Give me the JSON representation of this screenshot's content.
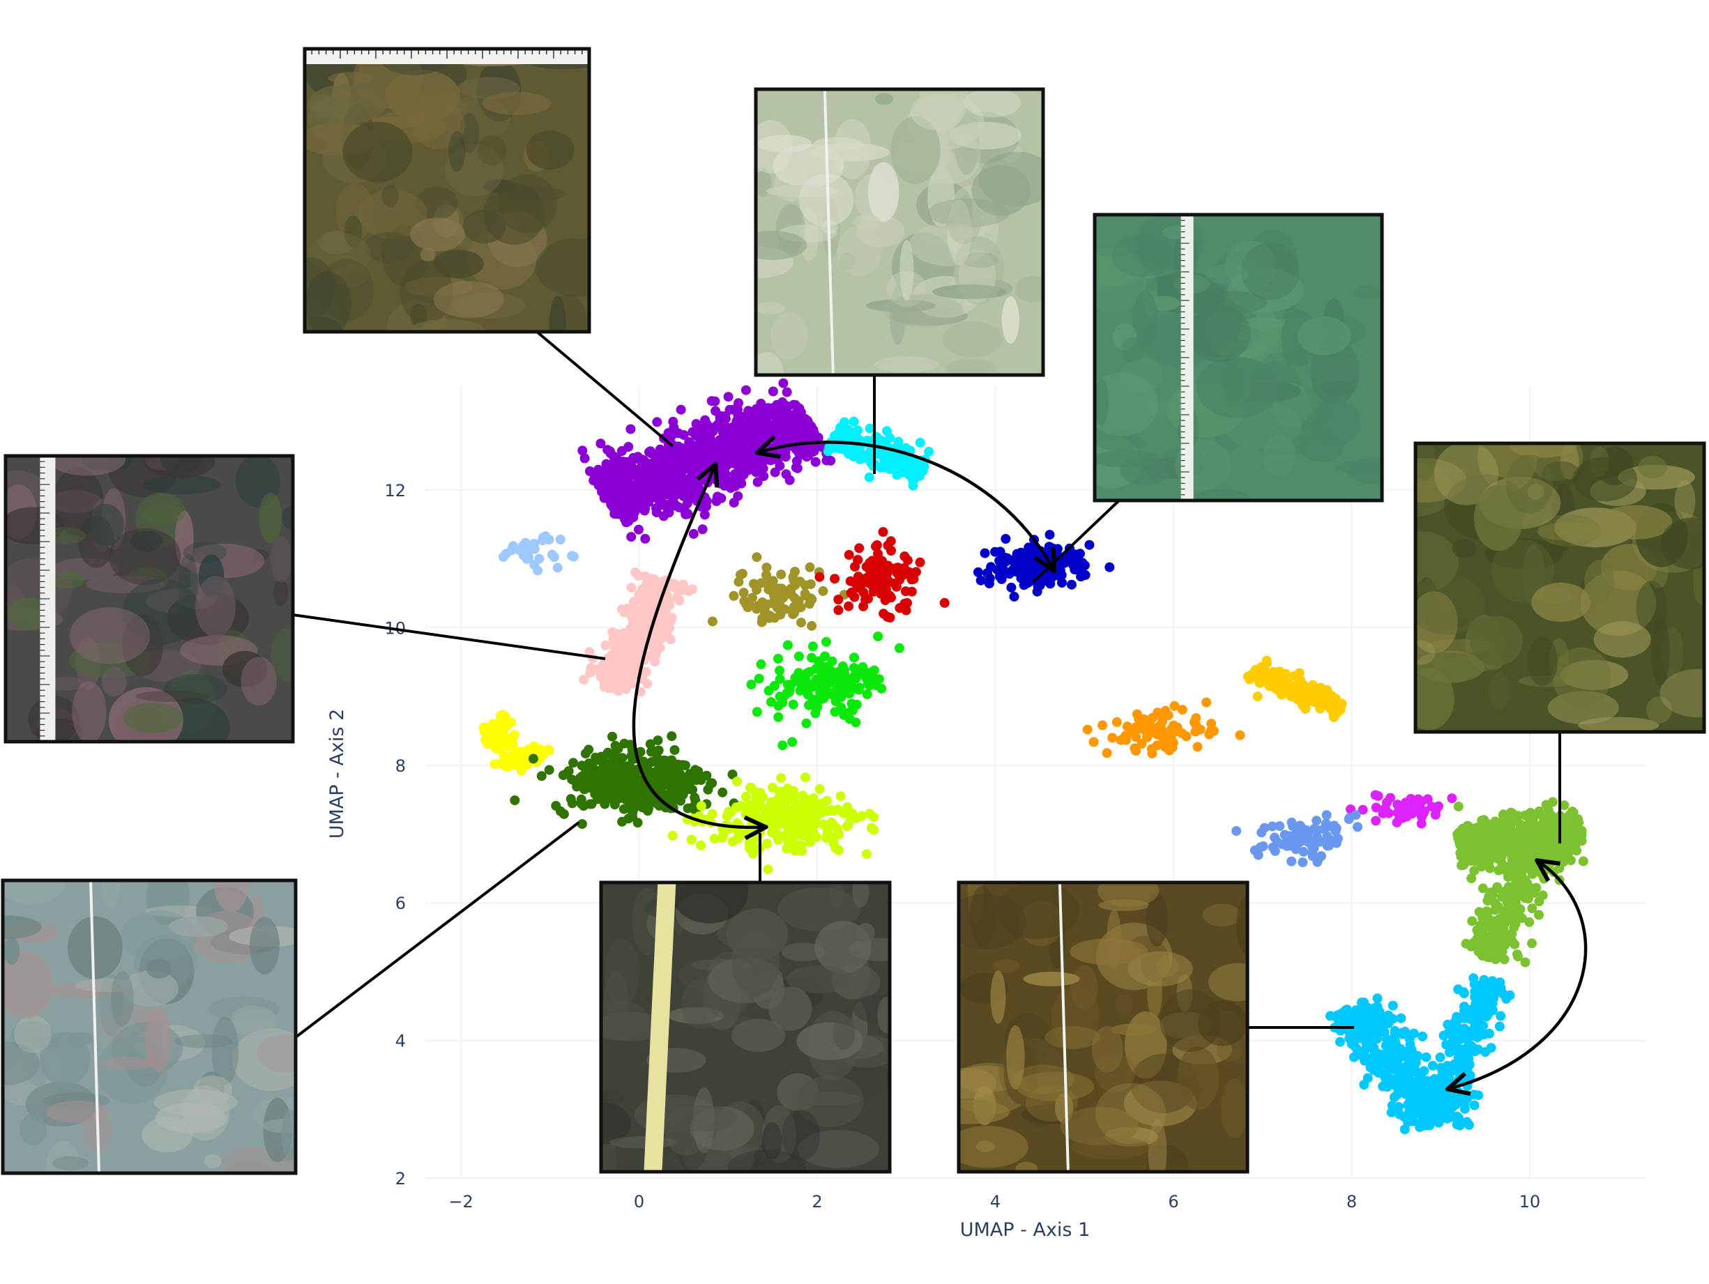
{
  "chart_data": {
    "type": "scatter",
    "xlabel": "UMAP - Axis 1",
    "ylabel": "UMAP - Axis 2",
    "xlim": [
      -2.4,
      11.3
    ],
    "ylim": [
      2,
      13.5
    ],
    "xticks": [
      -2,
      0,
      2,
      4,
      6,
      8,
      10
    ],
    "yticks": [
      2,
      4,
      6,
      8,
      10,
      12
    ],
    "xtick_labels": [
      "−2",
      "0",
      "2",
      "4",
      "6",
      "8",
      "10"
    ],
    "ytick_labels": [
      "2",
      "4",
      "6",
      "8",
      "10",
      "12"
    ],
    "grid": true,
    "legend": "none",
    "clusters": [
      {
        "id": "purple",
        "color": "#8b00d4",
        "shape": "band",
        "from": [
          -0.4,
          11.9
        ],
        "to": [
          1.9,
          13.0
        ],
        "width": 0.85,
        "n": 900
      },
      {
        "id": "cyan",
        "color": "#00f0ff",
        "shape": "band",
        "from": [
          2.2,
          12.8
        ],
        "to": [
          3.2,
          12.3
        ],
        "width": 0.35,
        "n": 180
      },
      {
        "id": "navy",
        "color": "#0000c8",
        "shape": "blob",
        "center": [
          4.5,
          10.9
        ],
        "sx": 0.3,
        "sy": 0.16,
        "n": 160
      },
      {
        "id": "light-blue",
        "color": "#9ec9ff",
        "shape": "blob",
        "center": [
          -1.2,
          11.1
        ],
        "sx": 0.16,
        "sy": 0.1,
        "n": 30
      },
      {
        "id": "pink",
        "color": "#ffc6c6",
        "shape": "band",
        "from": [
          -0.3,
          9.1
        ],
        "to": [
          0.3,
          10.7
        ],
        "width": 0.45,
        "n": 350
      },
      {
        "id": "olive",
        "color": "#a09428",
        "shape": "blob",
        "center": [
          1.55,
          10.45
        ],
        "sx": 0.24,
        "sy": 0.22,
        "n": 90
      },
      {
        "id": "red",
        "color": "#d80000",
        "shape": "blob",
        "center": [
          2.7,
          10.7
        ],
        "sx": 0.22,
        "sy": 0.28,
        "n": 100
      },
      {
        "id": "green",
        "color": "#0ce80c",
        "shape": "blob",
        "center": [
          2.1,
          9.2
        ],
        "sx": 0.3,
        "sy": 0.22,
        "n": 160
      },
      {
        "id": "yellow",
        "color": "#ffff00",
        "shape": "band",
        "from": [
          -1.7,
          8.6
        ],
        "to": [
          -1.2,
          8.0
        ],
        "width": 0.35,
        "n": 90
      },
      {
        "id": "dark-green",
        "color": "#2f7400",
        "shape": "blob",
        "center": [
          -0.05,
          7.75
        ],
        "sx": 0.42,
        "sy": 0.26,
        "n": 380
      },
      {
        "id": "lime",
        "color": "#ccff00",
        "shape": "blob",
        "center": [
          1.65,
          7.2
        ],
        "sx": 0.42,
        "sy": 0.22,
        "n": 260
      },
      {
        "id": "orange",
        "color": "#ff9800",
        "shape": "blob",
        "center": [
          5.8,
          8.5
        ],
        "sx": 0.3,
        "sy": 0.15,
        "n": 80
      },
      {
        "id": "gold",
        "color": "#ffcc00",
        "shape": "band",
        "from": [
          6.9,
          9.4
        ],
        "to": [
          7.9,
          8.8
        ],
        "width": 0.25,
        "n": 140
      },
      {
        "id": "magenta",
        "color": "#dd22ff",
        "shape": "blob",
        "center": [
          8.65,
          7.35
        ],
        "sx": 0.2,
        "sy": 0.11,
        "n": 50
      },
      {
        "id": "cornflower",
        "color": "#6a98f0",
        "shape": "blob",
        "center": [
          7.5,
          6.95
        ],
        "sx": 0.25,
        "sy": 0.16,
        "n": 80
      },
      {
        "id": "yellow-green",
        "color": "#7cc230",
        "shape": "band",
        "from": [
          9.2,
          6.85
        ],
        "to": [
          10.6,
          7.0
        ],
        "width": 0.55,
        "n": 400
      },
      {
        "id": "yellow-green-tail",
        "color": "#7cc230",
        "shape": "band",
        "from": [
          10.0,
          6.7
        ],
        "to": [
          9.5,
          5.2
        ],
        "width": 0.45,
        "n": 200
      },
      {
        "id": "sky-blue",
        "color": "#00c8ff",
        "shape": "band",
        "from": [
          8.0,
          4.5
        ],
        "to": [
          9.0,
          2.8
        ],
        "width": 0.5,
        "n": 350
      },
      {
        "id": "sky-blue-arm",
        "color": "#00c8ff",
        "shape": "band",
        "from": [
          9.0,
          2.8
        ],
        "to": [
          9.5,
          4.9
        ],
        "width": 0.45,
        "n": 220
      }
    ],
    "arrows": [
      {
        "from": [
          3.65,
          11.3
        ],
        "to": [
          1.35,
          12.55
        ]
      },
      {
        "from": [
          3.65,
          11.3
        ],
        "to": [
          4.65,
          10.85
        ]
      },
      {
        "from": [
          -0.3,
          8.9
        ],
        "to": [
          0.85,
          12.35
        ]
      },
      {
        "from": [
          -0.3,
          8.9
        ],
        "to": [
          1.4,
          7.1
        ]
      },
      {
        "from": [
          10.4,
          5.2
        ],
        "to": [
          10.1,
          6.6
        ]
      },
      {
        "from": [
          10.4,
          5.2
        ],
        "to": [
          9.1,
          3.3
        ]
      }
    ]
  },
  "insets": [
    {
      "id": "photo-turf-algae",
      "name": "turf-algae-photo",
      "icon": "seafloor-photo",
      "base": "#5e5a34",
      "tones": [
        "#4a4a2a",
        "#6e6840",
        "#7a6a3c",
        "#3e4430",
        "#8a7a50"
      ],
      "ruler": "top"
    },
    {
      "id": "photo-sandy-rubble",
      "name": "sandy-rubble-photo",
      "icon": "seafloor-photo",
      "base": "#b6c2a6",
      "tones": [
        "#c8d0b8",
        "#a4b496",
        "#d6dcc8",
        "#8fa48a",
        "#e0e2d2"
      ],
      "ruler": "vertical-thin"
    },
    {
      "id": "photo-sand-green",
      "name": "sand-flat-photo",
      "icon": "seafloor-photo",
      "base": "#4e8c6a",
      "tones": [
        "#4a8464",
        "#58956f",
        "#467c5e",
        "#5b9a74"
      ],
      "ruler": "vertical"
    },
    {
      "id": "photo-encrusted-rock",
      "name": "encrusted-rock-photo",
      "icon": "seafloor-photo",
      "base": "#4a4a48",
      "tones": [
        "#2c3e3e",
        "#6a5a60",
        "#8a6a72",
        "#4e6a3a",
        "#3a3434"
      ],
      "ruler": "vertical-left"
    },
    {
      "id": "photo-pale-crust",
      "name": "coralline-crust-photo",
      "icon": "seafloor-photo",
      "base": "#8aa0a0",
      "tones": [
        "#9aa8a8",
        "#b0b8b0",
        "#7c9494",
        "#a89090",
        "#6e8282"
      ],
      "ruler": "vertical-thin"
    },
    {
      "id": "photo-cobbles",
      "name": "cobble-photo",
      "icon": "seafloor-photo",
      "base": "#3e4238",
      "tones": [
        "#2e302a",
        "#4e5248",
        "#5c5e54",
        "#3a3c34",
        "#6a6a60"
      ],
      "ruler": "tape"
    },
    {
      "id": "photo-kelp",
      "name": "kelp-photo",
      "icon": "seafloor-photo",
      "base": "#5a4a22",
      "tones": [
        "#7a6630",
        "#8e7838",
        "#4a3e1e",
        "#a08a48",
        "#6a5626"
      ],
      "ruler": "vertical-thin"
    },
    {
      "id": "photo-branching-algae",
      "name": "branching-algae-photo",
      "icon": "seafloor-photo",
      "base": "#4a5428",
      "tones": [
        "#5a6430",
        "#6e7438",
        "#3e4822",
        "#8a8444",
        "#a09a5a"
      ],
      "ruler": "none"
    }
  ]
}
